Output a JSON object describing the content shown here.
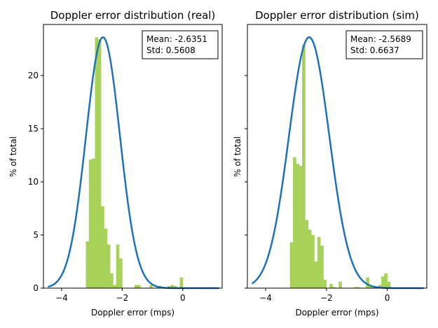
{
  "chart_data": [
    {
      "type": "bar",
      "title": "Doppler error distribution (real)",
      "xlabel": "Doppler error (mps)",
      "ylabel": "% of total",
      "xlim": [
        -4.6,
        1.3
      ],
      "ylim": [
        0,
        24.8
      ],
      "xticks": [
        -4,
        -2,
        0
      ],
      "xtick_labels": [
        "−4",
        "−2",
        "0"
      ],
      "yticks": [
        0,
        5,
        10,
        15,
        20
      ],
      "yticks_right": false,
      "grid": false,
      "stats": {
        "mean_text": "Mean: -2.6351",
        "std_text": "Std: 0.5608",
        "placement": "top-right"
      },
      "histogram": {
        "color": "#a6d25a",
        "bin_width": 0.1,
        "bins": [
          {
            "x": -3.15,
            "y": 4.4
          },
          {
            "x": -3.05,
            "y": 12.1
          },
          {
            "x": -2.95,
            "y": 12.2
          },
          {
            "x": -2.85,
            "y": 23.6
          },
          {
            "x": -2.75,
            "y": 23.4
          },
          {
            "x": -2.65,
            "y": 7.7
          },
          {
            "x": -2.55,
            "y": 5.6
          },
          {
            "x": -2.45,
            "y": 4.1
          },
          {
            "x": -2.35,
            "y": 1.4
          },
          {
            "x": -2.25,
            "y": 0.3
          },
          {
            "x": -2.15,
            "y": 4.1
          },
          {
            "x": -2.05,
            "y": 2.8
          },
          {
            "x": -1.55,
            "y": 0.3
          },
          {
            "x": -1.45,
            "y": 0.3
          },
          {
            "x": -1.05,
            "y": 0.3
          },
          {
            "x": -0.75,
            "y": 0.2
          },
          {
            "x": -0.45,
            "y": 0.2
          },
          {
            "x": -0.35,
            "y": 0.3
          },
          {
            "x": -0.25,
            "y": 0.2
          },
          {
            "x": -0.05,
            "y": 1.0
          }
        ]
      },
      "curve": {
        "type": "normal",
        "mean": -2.6351,
        "std": 0.5608,
        "peak": 23.6,
        "range": [
          -4.45,
          1.2
        ],
        "color": "#1f72b8"
      }
    },
    {
      "type": "bar",
      "title": "Doppler error distribution (sim)",
      "xlabel": "Doppler error (mps)",
      "ylabel": "% of total",
      "xlim": [
        -4.6,
        1.3
      ],
      "ylim": [
        0,
        24.8
      ],
      "xticks": [
        -4,
        -2,
        0
      ],
      "xtick_labels": [
        "−4",
        "−2",
        "0"
      ],
      "yticks": [
        0,
        5,
        10,
        15,
        20
      ],
      "yticks_right": true,
      "grid": false,
      "stats": {
        "mean_text": "Mean: -2.5689",
        "std_text": "Std: 0.6637",
        "placement": "top-right"
      },
      "histogram": {
        "color": "#a6d25a",
        "bin_width": 0.1,
        "bins": [
          {
            "x": -3.15,
            "y": 4.3
          },
          {
            "x": -3.05,
            "y": 12.3
          },
          {
            "x": -2.95,
            "y": 11.7
          },
          {
            "x": -2.85,
            "y": 11.5
          },
          {
            "x": -2.75,
            "y": 22.9
          },
          {
            "x": -2.65,
            "y": 6.4
          },
          {
            "x": -2.55,
            "y": 5.5
          },
          {
            "x": -2.45,
            "y": 5.0
          },
          {
            "x": -2.35,
            "y": 2.5
          },
          {
            "x": -2.25,
            "y": 4.8
          },
          {
            "x": -2.15,
            "y": 4.0
          },
          {
            "x": -2.05,
            "y": 0.8
          },
          {
            "x": -1.85,
            "y": 0.4
          },
          {
            "x": -1.75,
            "y": 0.1
          },
          {
            "x": -1.55,
            "y": 0.6
          },
          {
            "x": -1.05,
            "y": 0.1
          },
          {
            "x": -0.95,
            "y": 0.1
          },
          {
            "x": -0.65,
            "y": 1.0
          },
          {
            "x": -0.55,
            "y": 0.2
          },
          {
            "x": -0.25,
            "y": 0.3
          },
          {
            "x": -0.15,
            "y": 1.1
          },
          {
            "x": -0.05,
            "y": 1.4
          },
          {
            "x": 0.05,
            "y": 0.6
          }
        ]
      },
      "curve": {
        "type": "normal",
        "mean": -2.5689,
        "std": 0.6637,
        "peak": 23.6,
        "range": [
          -4.45,
          1.2
        ],
        "color": "#1f72b8"
      }
    }
  ]
}
